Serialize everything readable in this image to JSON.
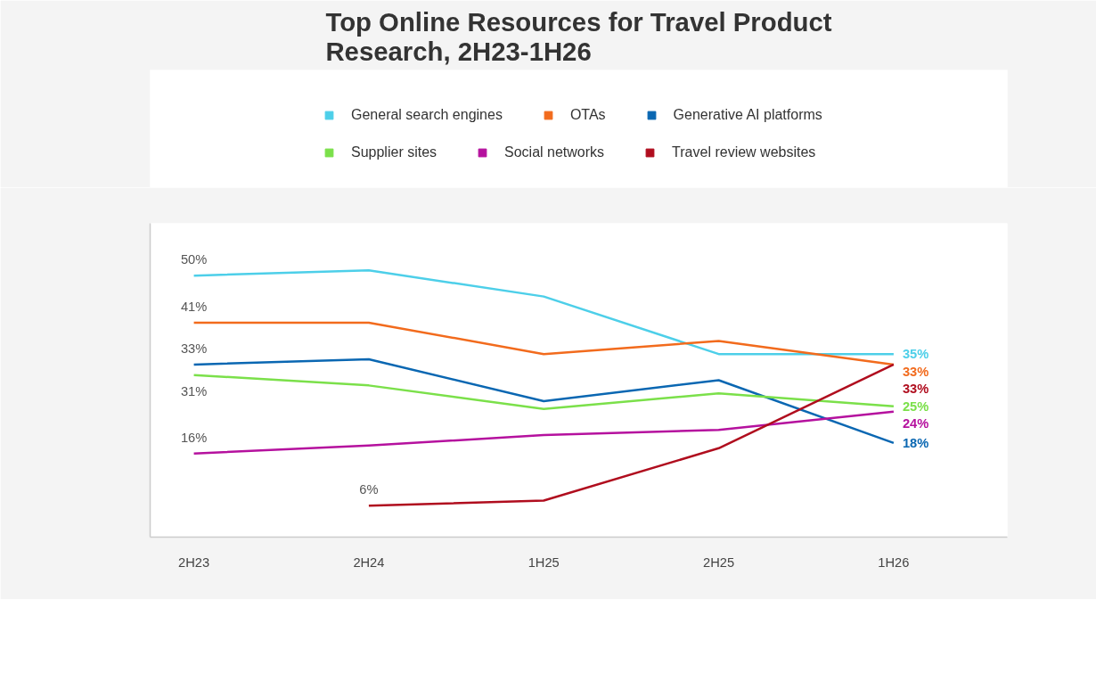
{
  "chart_data": {
    "type": "line",
    "title": "Top Online Resources for Travel Product\nResearch, 2H23-1H26",
    "categories": [
      "2H23",
      "2H24",
      "1H25",
      "2H25",
      "1H26"
    ],
    "ylim": [
      0,
      60
    ],
    "tick_labels": "x",
    "grid": false,
    "legend": "top",
    "series": [
      {
        "name": "General search engines",
        "color": "#4dcfe9",
        "values": [
          50,
          51,
          46,
          35,
          35
        ],
        "value_labels": [
          "50%",
          null,
          null,
          null,
          "35%"
        ]
      },
      {
        "name": "OTAs",
        "color": "#f26b1d",
        "values": [
          41,
          41,
          35,
          37.5,
          33
        ],
        "value_labels": [
          "41%",
          null,
          null,
          null,
          "33%"
        ]
      },
      {
        "name": "Generative AI platforms",
        "color": "#0a67b2",
        "values": [
          33,
          34,
          26,
          30,
          18
        ],
        "value_labels": [
          "33%",
          null,
          null,
          null,
          "18%"
        ]
      },
      {
        "name": "Supplier sites",
        "color": "#7be04a",
        "values": [
          31,
          29,
          24.5,
          27.5,
          25
        ],
        "value_labels": [
          "31%",
          null,
          null,
          null,
          "25%"
        ]
      },
      {
        "name": "Social networks",
        "color": "#b5119e",
        "values": [
          16,
          17.5,
          19.5,
          20.5,
          24
        ],
        "value_labels": [
          "16%",
          null,
          null,
          null,
          "24%"
        ]
      },
      {
        "name": "Travel review websites",
        "color": "#b00d1e",
        "values": [
          null,
          6,
          7,
          17,
          33
        ],
        "value_labels": [
          null,
          "6%",
          null,
          null,
          "33%"
        ]
      }
    ]
  }
}
